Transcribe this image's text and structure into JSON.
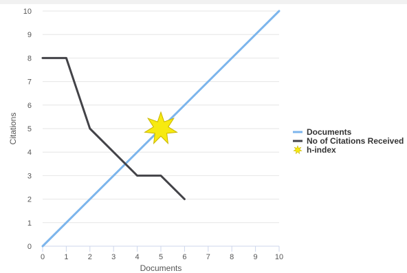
{
  "chart_data": {
    "type": "line",
    "title": "",
    "xlabel": "Documents",
    "ylabel": "Citations",
    "xlim": [
      0,
      10
    ],
    "ylim": [
      0,
      10
    ],
    "x_ticks": [
      0,
      1,
      2,
      3,
      4,
      5,
      6,
      7,
      8,
      9,
      10
    ],
    "y_ticks": [
      0,
      1,
      2,
      3,
      4,
      5,
      6,
      7,
      8,
      9,
      10
    ],
    "grid": "horizontal",
    "legend_position": "right",
    "series": [
      {
        "name": "Documents",
        "color": "#7cb5ec",
        "points": [
          [
            0,
            0
          ],
          [
            10,
            10
          ]
        ]
      },
      {
        "name": "No of Citations Received",
        "color": "#434348",
        "points": [
          [
            0,
            8
          ],
          [
            1,
            8
          ],
          [
            2,
            5
          ],
          [
            3,
            4
          ],
          [
            4,
            3
          ],
          [
            5,
            3
          ],
          [
            6,
            2
          ]
        ]
      },
      {
        "name": "h-index",
        "color": "#f7ea10",
        "marker": "star-icon",
        "points": [
          [
            5,
            5
          ]
        ]
      }
    ]
  }
}
